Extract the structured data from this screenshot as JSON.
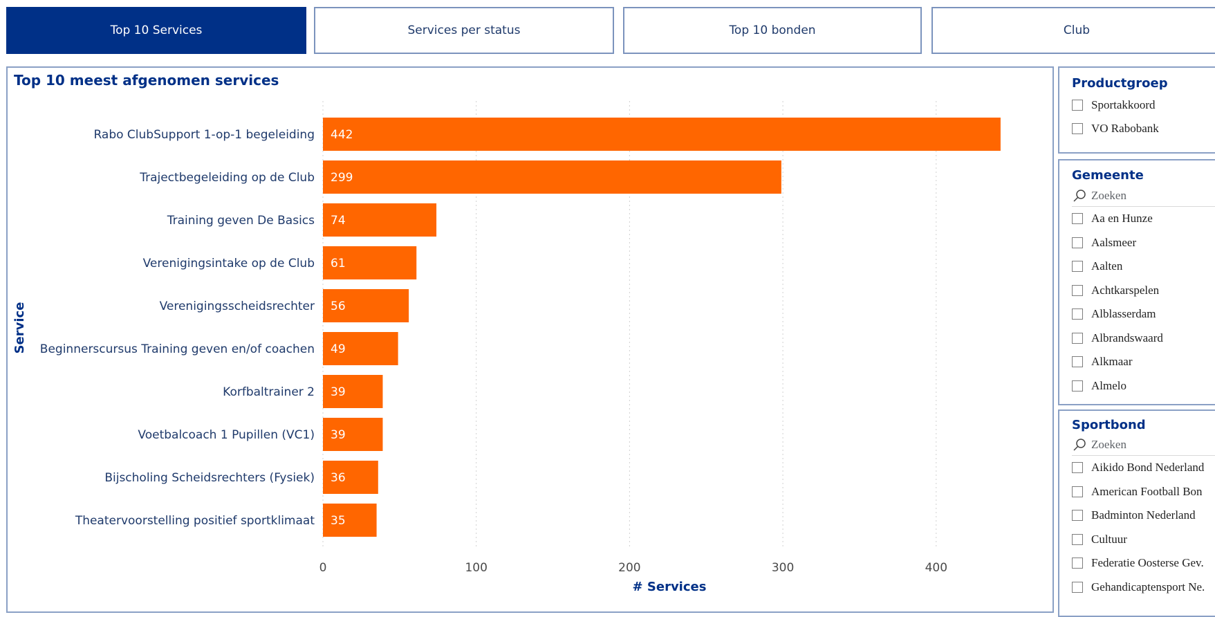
{
  "tabs": [
    {
      "label": "Top 10 Services",
      "active": true
    },
    {
      "label": "Services per status",
      "active": false
    },
    {
      "label": "Top 10 bonden",
      "active": false
    },
    {
      "label": "Club",
      "active": false
    }
  ],
  "colors": {
    "accent": "#003087",
    "bar": "#ff6600"
  },
  "chart_data": {
    "type": "bar",
    "orientation": "horizontal",
    "title": "Top 10 meest afgenomen services",
    "xlabel": "# Services",
    "ylabel": "Service",
    "categories": [
      "Rabo ClubSupport 1-op-1 begeleiding",
      "Trajectbegeleiding op de Club",
      "Training geven De Basics",
      "Verenigingsintake op de Club",
      "Verenigingsscheidsrechter",
      "Beginnerscursus Training geven en/of coachen",
      "Korfbaltrainer 2",
      "Voetbalcoach 1 Pupillen (VC1)",
      "Bijscholing Scheidsrechters (Fysiek)",
      "Theatervoorstelling positief sportklimaat"
    ],
    "values": [
      442,
      299,
      74,
      61,
      56,
      49,
      39,
      39,
      36,
      35
    ],
    "xlim": [
      0,
      450
    ],
    "xticks": [
      "0",
      "100",
      "200",
      "300",
      "400"
    ],
    "grid": true
  },
  "slicers": {
    "productgroep": {
      "title": "Productgroep",
      "items": [
        "Sportakkoord",
        "VO Rabobank"
      ]
    },
    "gemeente": {
      "title": "Gemeente",
      "search_placeholder": "Zoeken",
      "items": [
        "Aa en Hunze",
        "Aalsmeer",
        "Aalten",
        "Achtkarspelen",
        "Alblasserdam",
        "Albrandswaard",
        "Alkmaar",
        "Almelo"
      ]
    },
    "sportbond": {
      "title": "Sportbond",
      "search_placeholder": "Zoeken",
      "items": [
        "Aikido Bond Nederland",
        "American Football Bon",
        "Badminton Nederland",
        "Cultuur",
        "Federatie Oosterse Gev.",
        "Gehandicaptensport Ne."
      ]
    }
  }
}
